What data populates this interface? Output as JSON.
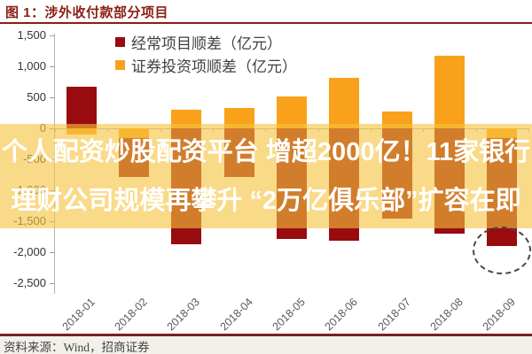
{
  "header": {
    "title": "图 1：涉外收付款部分项目"
  },
  "legend": [
    {
      "label": "经常项目顺差（亿元）",
      "color": "#980b0e"
    },
    {
      "label": "证券投资项顺差（亿元）",
      "color": "#f9a11b"
    }
  ],
  "chart_data": {
    "type": "bar",
    "categories": [
      "2018-01",
      "2018-02",
      "2018-03",
      "2018-04",
      "2018-05",
      "2018-06",
      "2018-07",
      "2018-08",
      "2018-09"
    ],
    "series": [
      {
        "name": "经常项目顺差（亿元）",
        "color": "#980b0e",
        "values": [
          670,
          -790,
          -1870,
          -790,
          -1780,
          -1810,
          -1450,
          -1700,
          -1900
        ]
      },
      {
        "name": "证券投资项顺差（亿元）",
        "color": "#f9a11b",
        "values": [
          -100,
          -150,
          300,
          330,
          520,
          810,
          270,
          1170,
          -150
        ]
      }
    ],
    "title": "涉外收付款部分项目",
    "xlabel": "",
    "ylabel": "亿元",
    "ylim": [
      -2500,
      1500
    ],
    "ytick_step": 500,
    "grid": false,
    "legend_position": "top-center",
    "bar_overlap": "full",
    "annotation": {
      "type": "dashed-ellipse",
      "target_category": "2018-09",
      "target_series": "经常项目顺差（亿元）"
    }
  },
  "overlay": {
    "line1": "个人配资炒股配资平台 增超2000亿！11家银行",
    "line2": "理财公司规模再攀升 “2万亿俱乐部”扩容在即",
    "text_color": "#ffffff",
    "band_color": "rgba(246,196,63,0.62)"
  },
  "footer": {
    "source": "资料来源：Wind，招商证券"
  },
  "colors": {
    "title": "#8a1e12",
    "divider": "#7a2020",
    "axis": "#b3b3b3",
    "tick_labels": "#595959"
  }
}
